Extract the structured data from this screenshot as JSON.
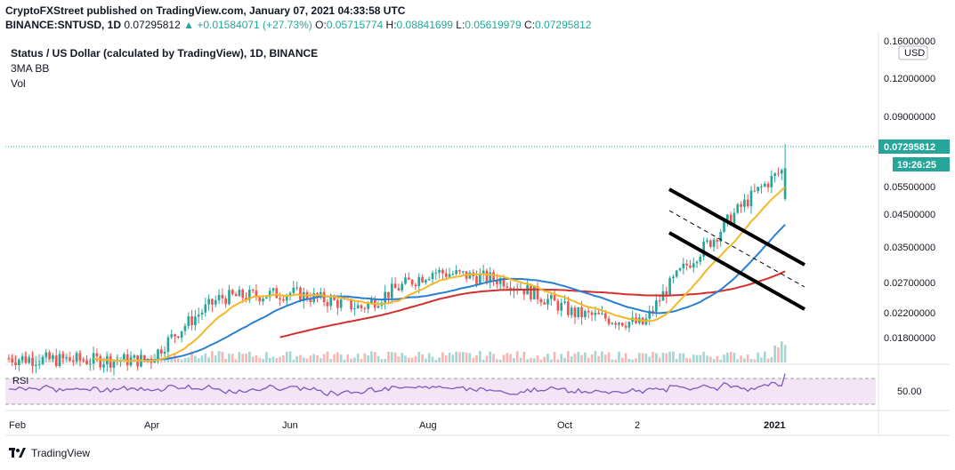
{
  "header": {
    "publisher_line": "CryptoFXStreet published on TradingView.com, January 07, 2021 04:33:58 UTC",
    "symbol": "BINANCE:SNTUSD, 1D",
    "last": "0.07295812",
    "change": "▲ +0.01584071 (+27.73%)",
    "o_label": "O:",
    "o": "0.05715774",
    "h_label": "H:",
    "h": "0.08841699",
    "l_label": "L:",
    "l": "0.05619979",
    "c_label": "C:",
    "c": "0.07295812"
  },
  "legend": {
    "title": "Status / US Dollar (calculated by TradingView), 1D, BINANCE",
    "indicator1": "3MA BB",
    "indicator2": "Vol"
  },
  "price_axis": {
    "currency": "USD",
    "current_price": "0.07295812",
    "countdown": "19:26:25",
    "rsi_tick": "50.00"
  },
  "footer": {
    "brand": "TradingView"
  },
  "colors": {
    "up": "#26a69a",
    "down": "#ef5350",
    "ma_fast": "#f4b728",
    "ma_mid": "#2a7fd4",
    "ma_slow": "#d32f2f",
    "rsi": "#7e57c2",
    "rsi_band": "#f3e5f5",
    "channel": "#000000"
  },
  "chart_data": {
    "type": "candlestick",
    "title": "Status / US Dollar (calculated by TradingView), 1D, BINANCE",
    "scale": "log",
    "y_ticks": [
      "0.16000000",
      "0.12000000",
      "0.09000000",
      "0.05500000",
      "0.04500000",
      "0.03500000",
      "0.02700000",
      "0.02200000",
      "0.01800000"
    ],
    "x_ticks": [
      "Feb",
      "Apr",
      "Jun",
      "Aug",
      "Oct",
      "2",
      "2021"
    ],
    "last_close": 0.07295812,
    "last_bar": {
      "open": 0.05715774,
      "high": 0.08841699,
      "low": 0.05619979,
      "close": 0.07295812
    },
    "approx_close_path": [
      {
        "x": "Feb",
        "y": 0.016
      },
      {
        "x": "Mar",
        "y": 0.0158
      },
      {
        "x": "Apr",
        "y": 0.0158
      },
      {
        "x": "May",
        "y": 0.026
      },
      {
        "x": "Jun",
        "y": 0.027
      },
      {
        "x": "Jul",
        "y": 0.024
      },
      {
        "x": "Aug",
        "y": 0.032
      },
      {
        "x": "Sep",
        "y": 0.03
      },
      {
        "x": "Oct",
        "y": 0.023
      },
      {
        "x": "Nov",
        "y": 0.021
      },
      {
        "x": "Dec",
        "y": 0.042
      },
      {
        "x": "2021",
        "y": 0.0729
      }
    ],
    "indicators": [
      "3MA BB",
      "Vol",
      "RSI"
    ],
    "rsi_level": 50
  }
}
